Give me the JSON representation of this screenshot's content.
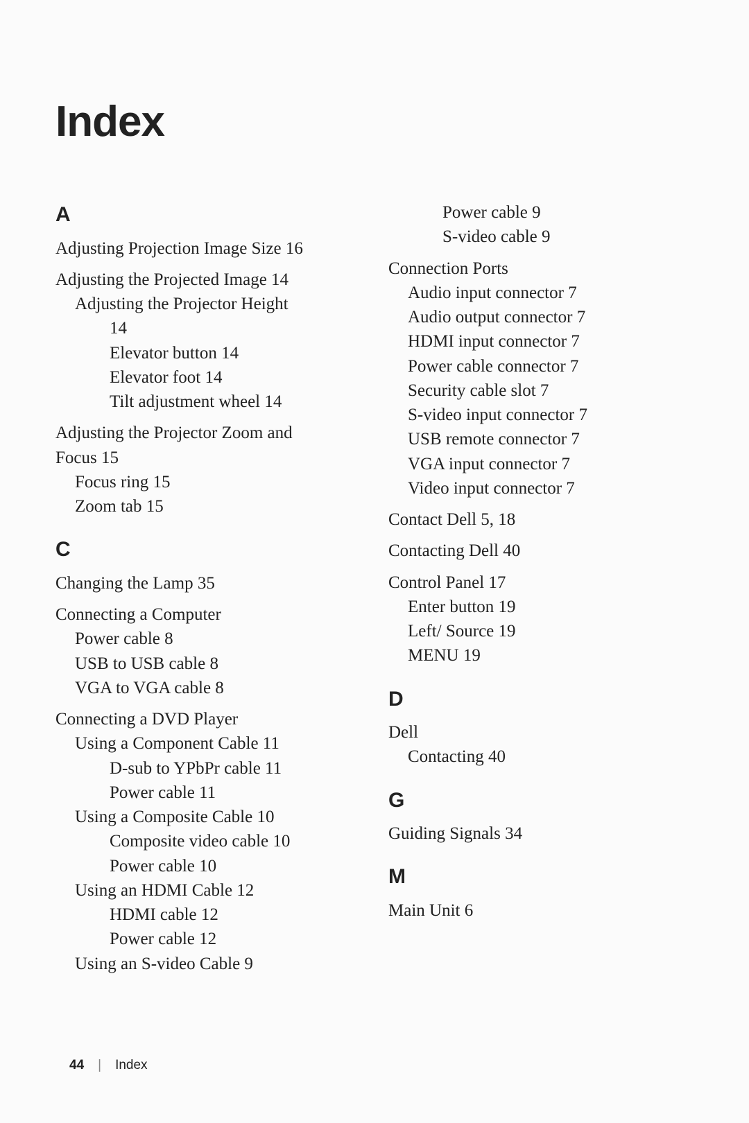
{
  "title": "Index",
  "footer": {
    "page": "44",
    "label": "Index"
  },
  "columns": [
    {
      "blocks": [
        {
          "type": "heading",
          "text": "A"
        },
        {
          "type": "group",
          "lines": [
            {
              "lvl": 0,
              "text": "Adjusting Projection Image Size 16"
            }
          ]
        },
        {
          "type": "group",
          "lines": [
            {
              "lvl": 0,
              "text": "Adjusting the Projected Image 14"
            },
            {
              "lvl": 1,
              "text": "Adjusting the Projector Height"
            },
            {
              "lvl": 2,
              "text": "14"
            },
            {
              "lvl": 2,
              "text": "Elevator button 14"
            },
            {
              "lvl": 2,
              "text": "Elevator foot 14"
            },
            {
              "lvl": 2,
              "text": "Tilt adjustment wheel 14"
            }
          ]
        },
        {
          "type": "group",
          "lines": [
            {
              "lvl": 0,
              "text": "Adjusting the Projector Zoom and"
            },
            {
              "lvl": 0,
              "text": "Focus 15"
            },
            {
              "lvl": 1,
              "text": "Focus ring 15"
            },
            {
              "lvl": 1,
              "text": "Zoom tab 15"
            }
          ]
        },
        {
          "type": "heading",
          "text": "C"
        },
        {
          "type": "group",
          "lines": [
            {
              "lvl": 0,
              "text": "Changing the Lamp 35"
            }
          ]
        },
        {
          "type": "group",
          "lines": [
            {
              "lvl": 0,
              "text": "Connecting a Computer"
            },
            {
              "lvl": 1,
              "text": "Power cable 8"
            },
            {
              "lvl": 1,
              "text": "USB to USB cable 8"
            },
            {
              "lvl": 1,
              "text": "VGA to VGA cable 8"
            }
          ]
        },
        {
          "type": "group",
          "lines": [
            {
              "lvl": 0,
              "text": "Connecting a DVD Player"
            },
            {
              "lvl": 1,
              "text": "Using a Component Cable 11"
            },
            {
              "lvl": 2,
              "text": "D-sub to YPbPr cable 11"
            },
            {
              "lvl": 2,
              "text": "Power cable 11"
            },
            {
              "lvl": 1,
              "text": "Using a Composite Cable 10"
            },
            {
              "lvl": 2,
              "text": "Composite video cable 10"
            },
            {
              "lvl": 2,
              "text": "Power cable 10"
            },
            {
              "lvl": 1,
              "text": "Using an HDMI Cable 12"
            },
            {
              "lvl": 2,
              "text": "HDMI cable 12"
            },
            {
              "lvl": 2,
              "text": "Power cable 12"
            },
            {
              "lvl": 1,
              "text": "Using an S-video Cable 9"
            }
          ]
        }
      ]
    },
    {
      "blocks": [
        {
          "type": "group",
          "lines": [
            {
              "lvl": 2,
              "text": "Power cable 9"
            },
            {
              "lvl": 2,
              "text": "S-video cable 9"
            }
          ]
        },
        {
          "type": "group",
          "lines": [
            {
              "lvl": 0,
              "text": "Connection Ports"
            },
            {
              "lvl": 1,
              "text": "Audio input connector 7"
            },
            {
              "lvl": 1,
              "text": "Audio output connector 7"
            },
            {
              "lvl": 1,
              "text": "HDMI input connector 7"
            },
            {
              "lvl": 1,
              "text": "Power cable connector 7"
            },
            {
              "lvl": 1,
              "text": "Security cable slot 7"
            },
            {
              "lvl": 1,
              "text": "S-video input connector 7"
            },
            {
              "lvl": 1,
              "text": "USB remote connector 7"
            },
            {
              "lvl": 1,
              "text": "VGA input connector 7"
            },
            {
              "lvl": 1,
              "text": "Video input connector 7"
            }
          ]
        },
        {
          "type": "group",
          "lines": [
            {
              "lvl": 0,
              "text": "Contact Dell 5, 18"
            }
          ]
        },
        {
          "type": "group",
          "lines": [
            {
              "lvl": 0,
              "text": "Contacting Dell 40"
            }
          ]
        },
        {
          "type": "group",
          "lines": [
            {
              "lvl": 0,
              "text": "Control Panel 17"
            },
            {
              "lvl": 1,
              "text": "Enter button 19"
            },
            {
              "lvl": 1,
              "text": "Left/ Source 19"
            },
            {
              "lvl": 1,
              "text": "MENU 19"
            }
          ]
        },
        {
          "type": "heading",
          "text": "D"
        },
        {
          "type": "group",
          "lines": [
            {
              "lvl": 0,
              "text": "Dell"
            },
            {
              "lvl": 1,
              "text": "Contacting 40"
            }
          ]
        },
        {
          "type": "heading",
          "text": "G"
        },
        {
          "type": "group",
          "lines": [
            {
              "lvl": 0,
              "text": "Guiding Signals 34"
            }
          ]
        },
        {
          "type": "heading",
          "text": "M"
        },
        {
          "type": "group",
          "lines": [
            {
              "lvl": 0,
              "text": "Main Unit 6"
            }
          ]
        }
      ]
    }
  ]
}
